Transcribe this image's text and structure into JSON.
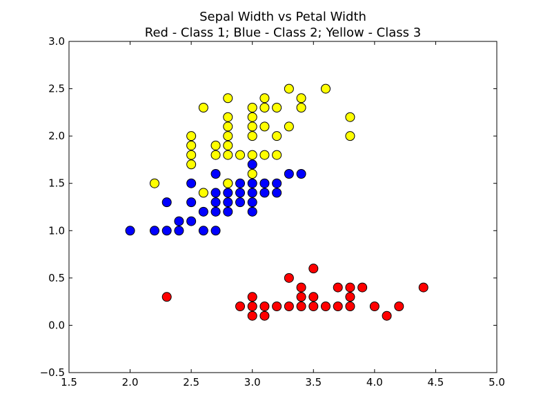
{
  "chart_data": {
    "type": "scatter",
    "title": "Sepal Width vs Petal Width",
    "subtitle": "Red - Class 1; Blue - Class 2; Yellow - Class 3",
    "xlabel": "",
    "ylabel": "",
    "xlim": [
      1.5,
      5.0
    ],
    "ylim": [
      -0.5,
      3.0
    ],
    "xticks": [
      1.5,
      2.0,
      2.5,
      3.0,
      3.5,
      4.0,
      4.5,
      5.0
    ],
    "xtick_labels": [
      "1.5",
      "2.0",
      "2.5",
      "3.0",
      "3.5",
      "4.0",
      "4.5",
      "5.0"
    ],
    "yticks": [
      -0.5,
      0.0,
      0.5,
      1.0,
      1.5,
      2.0,
      2.5,
      3.0
    ],
    "ytick_labels": [
      "−0.5",
      "0.0",
      "0.5",
      "1.0",
      "1.5",
      "2.0",
      "2.5",
      "3.0"
    ],
    "grid": false,
    "series": [
      {
        "color": "#ff0000",
        "points": [
          [
            2.3,
            0.3
          ],
          [
            2.9,
            0.2
          ],
          [
            3.0,
            0.2
          ],
          [
            3.0,
            0.3
          ],
          [
            3.0,
            0.1
          ],
          [
            3.1,
            0.2
          ],
          [
            3.1,
            0.1
          ],
          [
            3.2,
            0.2
          ],
          [
            3.3,
            0.5
          ],
          [
            3.3,
            0.2
          ],
          [
            3.4,
            0.4
          ],
          [
            3.4,
            0.3
          ],
          [
            3.4,
            0.2
          ],
          [
            3.5,
            0.6
          ],
          [
            3.5,
            0.3
          ],
          [
            3.5,
            0.2
          ],
          [
            3.6,
            0.2
          ],
          [
            3.7,
            0.4
          ],
          [
            3.7,
            0.2
          ],
          [
            3.8,
            0.4
          ],
          [
            3.8,
            0.3
          ],
          [
            3.8,
            0.2
          ],
          [
            3.9,
            0.4
          ],
          [
            4.0,
            0.2
          ],
          [
            4.1,
            0.1
          ],
          [
            4.2,
            0.2
          ],
          [
            4.4,
            0.4
          ]
        ]
      },
      {
        "color": "#0000ff",
        "points": [
          [
            2.0,
            1.0
          ],
          [
            2.2,
            1.0
          ],
          [
            2.3,
            1.3
          ],
          [
            2.3,
            1.0
          ],
          [
            2.4,
            1.1
          ],
          [
            2.4,
            1.0
          ],
          [
            2.5,
            1.5
          ],
          [
            2.5,
            1.3
          ],
          [
            2.5,
            1.1
          ],
          [
            2.6,
            1.2
          ],
          [
            2.6,
            1.0
          ],
          [
            2.7,
            1.6
          ],
          [
            2.7,
            1.4
          ],
          [
            2.7,
            1.3
          ],
          [
            2.7,
            1.2
          ],
          [
            2.7,
            1.0
          ],
          [
            2.8,
            1.5
          ],
          [
            2.8,
            1.4
          ],
          [
            2.8,
            1.3
          ],
          [
            2.8,
            1.2
          ],
          [
            2.9,
            1.5
          ],
          [
            2.9,
            1.4
          ],
          [
            2.9,
            1.3
          ],
          [
            3.0,
            1.7
          ],
          [
            3.0,
            1.5
          ],
          [
            3.0,
            1.4
          ],
          [
            3.0,
            1.3
          ],
          [
            3.0,
            1.2
          ],
          [
            3.1,
            1.5
          ],
          [
            3.1,
            1.4
          ],
          [
            3.2,
            1.5
          ],
          [
            3.2,
            1.4
          ],
          [
            3.3,
            1.6
          ],
          [
            3.4,
            1.6
          ]
        ]
      },
      {
        "color": "#ffff00",
        "points": [
          [
            2.2,
            1.5
          ],
          [
            2.5,
            2.0
          ],
          [
            2.5,
            1.9
          ],
          [
            2.5,
            1.8
          ],
          [
            2.5,
            1.7
          ],
          [
            2.6,
            2.3
          ],
          [
            2.6,
            1.4
          ],
          [
            2.7,
            1.9
          ],
          [
            2.7,
            1.8
          ],
          [
            2.8,
            2.4
          ],
          [
            2.8,
            2.2
          ],
          [
            2.8,
            2.1
          ],
          [
            2.8,
            2.0
          ],
          [
            2.8,
            1.9
          ],
          [
            2.8,
            1.8
          ],
          [
            2.8,
            1.5
          ],
          [
            2.9,
            1.8
          ],
          [
            3.0,
            2.3
          ],
          [
            3.0,
            2.2
          ],
          [
            3.0,
            2.1
          ],
          [
            3.0,
            2.0
          ],
          [
            3.0,
            1.8
          ],
          [
            3.0,
            1.6
          ],
          [
            3.1,
            2.4
          ],
          [
            3.1,
            2.3
          ],
          [
            3.1,
            2.1
          ],
          [
            3.1,
            1.8
          ],
          [
            3.2,
            2.3
          ],
          [
            3.2,
            2.0
          ],
          [
            3.2,
            1.8
          ],
          [
            3.3,
            2.5
          ],
          [
            3.3,
            2.1
          ],
          [
            3.4,
            2.4
          ],
          [
            3.4,
            2.3
          ],
          [
            3.6,
            2.5
          ],
          [
            3.8,
            2.2
          ],
          [
            3.8,
            2.0
          ]
        ]
      }
    ]
  }
}
